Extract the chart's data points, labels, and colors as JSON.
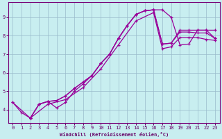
{
  "xlabel": "Windchill (Refroidissement éolien,°C)",
  "xlim": [
    -0.5,
    23.5
  ],
  "ylim": [
    3.3,
    9.8
  ],
  "xticks": [
    0,
    1,
    2,
    3,
    4,
    5,
    6,
    7,
    8,
    9,
    10,
    11,
    12,
    13,
    14,
    15,
    16,
    17,
    18,
    19,
    20,
    21,
    22,
    23
  ],
  "yticks": [
    4,
    5,
    6,
    7,
    8,
    9
  ],
  "background_color": "#c8eef0",
  "line_color": "#990099",
  "grid_color": "#99bbcc",
  "line1_x": [
    0,
    1,
    2,
    3,
    4,
    5,
    6,
    7,
    8,
    9,
    10,
    11,
    12,
    13,
    14,
    15,
    16,
    17,
    18,
    19,
    20,
    21,
    22,
    23
  ],
  "line1_y": [
    4.4,
    3.85,
    3.55,
    4.3,
    4.45,
    4.1,
    4.4,
    5.0,
    5.4,
    5.85,
    6.5,
    7.0,
    7.85,
    8.55,
    9.15,
    9.35,
    9.4,
    9.4,
    9.0,
    7.5,
    7.55,
    8.3,
    8.3,
    8.3
  ],
  "line2_x": [
    0,
    2,
    3,
    4,
    5,
    6,
    7,
    8,
    9,
    10,
    11,
    12,
    13,
    14,
    15,
    16,
    17,
    18,
    19,
    20,
    21,
    22,
    23
  ],
  "line2_y": [
    4.4,
    3.55,
    4.3,
    4.45,
    4.5,
    4.75,
    5.15,
    5.5,
    5.85,
    6.5,
    7.0,
    7.85,
    8.55,
    9.15,
    9.35,
    9.4,
    7.55,
    7.6,
    8.3,
    8.3,
    8.3,
    8.3,
    7.85
  ],
  "line3_x": [
    2,
    3,
    4,
    5,
    6,
    7,
    8,
    9,
    10,
    11,
    12,
    13,
    14,
    15,
    16,
    17,
    18,
    19,
    20,
    21,
    22,
    23
  ],
  "line3_y": [
    3.55,
    4.3,
    4.45,
    4.5,
    4.75,
    5.15,
    5.5,
    5.85,
    6.5,
    7.0,
    7.85,
    8.55,
    9.15,
    9.35,
    9.4,
    7.55,
    7.6,
    8.2,
    8.2,
    8.15,
    8.15,
    7.85
  ],
  "line4_x": [
    2,
    4,
    6,
    8,
    10,
    12,
    14,
    16,
    17,
    18,
    19,
    20,
    21,
    22,
    23
  ],
  "line4_y": [
    3.55,
    4.3,
    4.55,
    5.2,
    6.2,
    7.5,
    8.8,
    9.25,
    7.3,
    7.4,
    7.9,
    7.9,
    7.9,
    7.8,
    7.75
  ]
}
